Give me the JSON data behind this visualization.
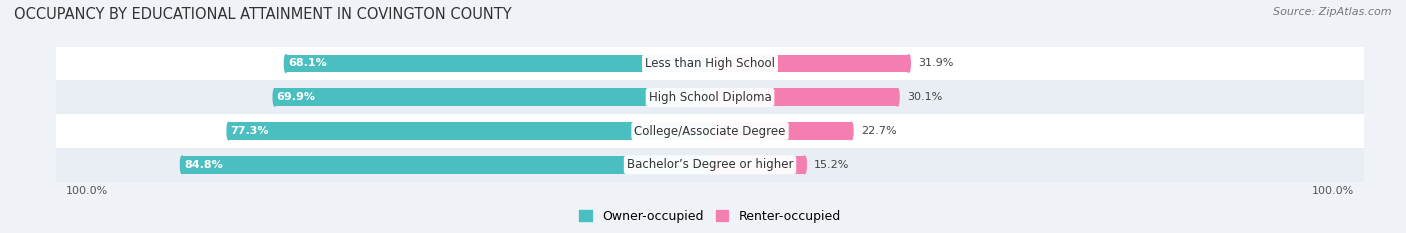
{
  "title": "OCCUPANCY BY EDUCATIONAL ATTAINMENT IN COVINGTON COUNTY",
  "source": "Source: ZipAtlas.com",
  "categories": [
    "Less than High School",
    "High School Diploma",
    "College/Associate Degree",
    "Bachelor’s Degree or higher"
  ],
  "owner_values": [
    68.1,
    69.9,
    77.3,
    84.8
  ],
  "renter_values": [
    31.9,
    30.1,
    22.7,
    15.2
  ],
  "owner_color": "#4BBFC0",
  "renter_color": "#F47EB0",
  "row_colors": [
    "#FFFFFF",
    "#E8EEF4",
    "#FFFFFF",
    "#E8EEF4"
  ],
  "background_color": "#EFF3F8",
  "total": 100.0,
  "bar_height": 0.52,
  "title_fontsize": 10.5,
  "label_fontsize": 8.5,
  "value_fontsize": 8.0,
  "legend_fontsize": 9,
  "source_fontsize": 8.0
}
